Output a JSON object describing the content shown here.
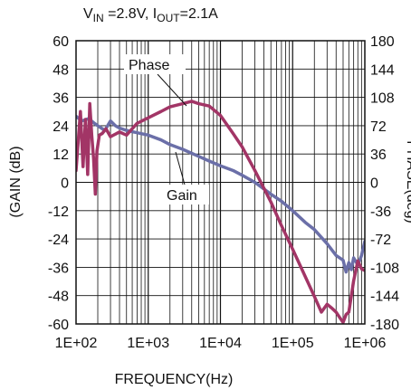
{
  "chart_data": {
    "type": "line",
    "title_parts": [
      "V",
      "IN",
      " =2.8V, I",
      "OUT",
      "=2.1A"
    ],
    "xlabel": "FREQUENCY(Hz)",
    "ylabel_left": "(GAIN (dB)",
    "ylabel_right": "PHASE(deg)",
    "x_scale": "log",
    "xlim": [
      100,
      1000000
    ],
    "x_ticks": [
      "1E+02",
      "1E+03",
      "1E+04",
      "1E+05",
      "1E+06"
    ],
    "ylim_left": [
      -60,
      60
    ],
    "ylim_right": [
      -180,
      180
    ],
    "y_ticks_left": [
      "60",
      "48",
      "36",
      "24",
      "12",
      "0",
      "-12",
      "-24",
      "-36",
      "-48",
      "-60"
    ],
    "y_ticks_right": [
      "180",
      "144",
      "108",
      "72",
      "36",
      "0",
      "-36",
      "-72",
      "-108",
      "-144",
      "-180"
    ],
    "grid": true,
    "annotations": [
      {
        "text": "Phase",
        "series": "Phase"
      },
      {
        "text": "Gain",
        "series": "Gain"
      }
    ],
    "series": [
      {
        "name": "Gain",
        "axis": "left",
        "color": "#6b6fa8",
        "x": [
          100,
          120,
          150,
          180,
          200,
          250,
          300,
          350,
          400,
          500,
          700,
          1000,
          1500,
          2000,
          3000,
          5000,
          7000,
          10000,
          15000,
          20000,
          30000,
          50000,
          70000,
          100000,
          150000,
          200000,
          300000,
          400000,
          500000,
          550000,
          600000,
          650000,
          700000,
          800000,
          900000,
          1000000
        ],
        "y": [
          28,
          26,
          27,
          25,
          24,
          22,
          26,
          24,
          23,
          22,
          21,
          20,
          18,
          16,
          14,
          11,
          9,
          7,
          5,
          3,
          0,
          -5,
          -8,
          -12,
          -17,
          -20,
          -26,
          -31,
          -33,
          -38,
          -34,
          -37,
          -32,
          -35,
          -31,
          -25
        ]
      },
      {
        "name": "Phase",
        "axis": "right",
        "color": "#a23566",
        "x": [
          100,
          115,
          125,
          135,
          145,
          155,
          165,
          175,
          185,
          195,
          210,
          230,
          260,
          300,
          400,
          500,
          700,
          1000,
          1500,
          2000,
          3000,
          4000,
          5000,
          7000,
          10000,
          15000,
          20000,
          30000,
          50000,
          70000,
          100000,
          150000,
          200000,
          250000,
          300000,
          350000,
          400000,
          450000,
          500000,
          550000,
          600000,
          700000,
          800000,
          900000,
          1000000
        ],
        "y": [
          15,
          90,
          20,
          80,
          10,
          100,
          60,
          30,
          -15,
          40,
          60,
          62,
          68,
          58,
          64,
          60,
          75,
          82,
          90,
          96,
          100,
          103,
          100,
          97,
          85,
          62,
          45,
          15,
          -25,
          -55,
          -85,
          -120,
          -145,
          -165,
          -155,
          -160,
          -165,
          -172,
          -178,
          -168,
          -165,
          -125,
          -100,
          -110,
          -112
        ]
      }
    ]
  }
}
